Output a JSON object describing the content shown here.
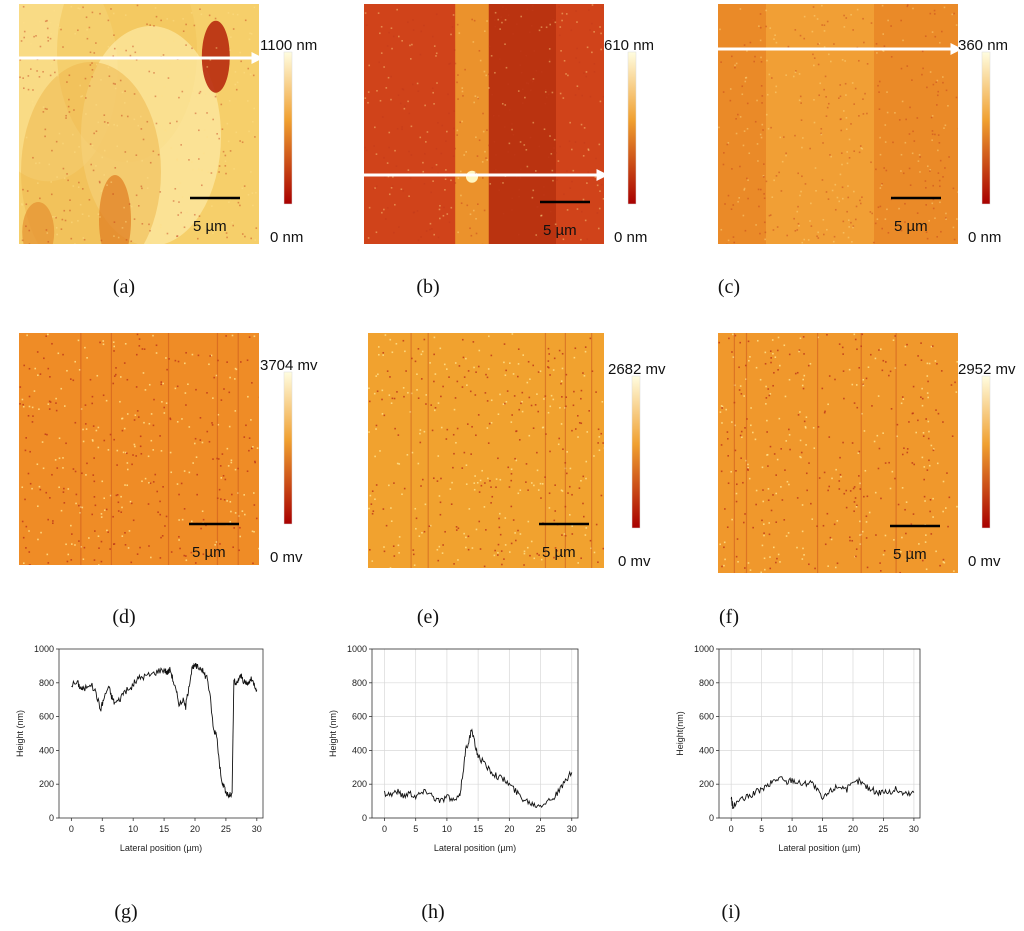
{
  "maps": [
    {
      "id": "a",
      "caption": "(a)",
      "max_label": "1100 nm",
      "min_label": "0 nm",
      "scale_label": "5 µm",
      "kind": "height",
      "base": "#f6cf6a",
      "variant": 0
    },
    {
      "id": "b",
      "caption": "(b)",
      "max_label": "610 nm",
      "min_label": "0 nm",
      "scale_label": "5 µm",
      "kind": "height",
      "base": "#d0431a",
      "variant": 1
    },
    {
      "id": "c",
      "caption": "(c)",
      "max_label": "360 nm",
      "min_label": "0 nm",
      "scale_label": "5 µm",
      "kind": "height",
      "base": "#ea8a28",
      "variant": 2
    },
    {
      "id": "d",
      "caption": "(d)",
      "max_label": "3704 mv",
      "min_label": "0 mv",
      "scale_label": "5 µm",
      "kind": "potential",
      "base": "#ef8c26",
      "variant": 3
    },
    {
      "id": "e",
      "caption": "(e)",
      "max_label": "2682 mv",
      "min_label": "0 mv",
      "scale_label": "5 µm",
      "kind": "potential",
      "base": "#f1a22f",
      "variant": 4
    },
    {
      "id": "f",
      "caption": "(f)",
      "max_label": "2952 mv",
      "min_label": "0 mv",
      "scale_label": "5 µm",
      "kind": "potential",
      "base": "#f0982c",
      "variant": 5
    }
  ],
  "colors": {
    "colorbar_top": "#fffde0",
    "colorbar_mid": "#f0a030",
    "colorbar_bottom": "#a80000",
    "arrow": "#ffffff",
    "line": "#111111"
  },
  "chart_data": [
    {
      "type": "line",
      "caption": "(g)",
      "title": "",
      "xlabel": "Lateral position (µm)",
      "ylabel": "Height (nm)",
      "xlim": [
        -2,
        31
      ],
      "ylim": [
        0,
        1000
      ],
      "xticks": [
        0,
        5,
        10,
        15,
        20,
        25,
        30
      ],
      "yticks": [
        0,
        200,
        400,
        600,
        800,
        1000
      ],
      "grid": false,
      "x": [
        0,
        1,
        1.5,
        2,
        3,
        4,
        4.7,
        5.2,
        6,
        6.5,
        7,
        7.8,
        8.5,
        9.5,
        10.2,
        11,
        12,
        13,
        14,
        15,
        15.5,
        16,
        16.5,
        17,
        17.5,
        18,
        18.5,
        19,
        19.5,
        20,
        20.5,
        21,
        21.5,
        22,
        22.5,
        23,
        23.5,
        24,
        24.5,
        25,
        25.5,
        26,
        26.3,
        26.6,
        27,
        27.5,
        28,
        28.5,
        29,
        29.5,
        30
      ],
      "y": [
        790,
        800,
        770,
        760,
        800,
        740,
        640,
        700,
        780,
        720,
        680,
        700,
        750,
        760,
        800,
        830,
        840,
        850,
        870,
        880,
        860,
        880,
        810,
        740,
        670,
        700,
        660,
        780,
        880,
        900,
        890,
        890,
        850,
        830,
        700,
        520,
        500,
        300,
        200,
        150,
        130,
        140,
        820,
        780,
        820,
        840,
        800,
        790,
        820,
        800,
        760
      ]
    },
    {
      "type": "line",
      "caption": "(h)",
      "title": "",
      "xlabel": "Lateral position (µm)",
      "ylabel": "Height (nm)",
      "xlim": [
        -2,
        31
      ],
      "ylim": [
        0,
        1000
      ],
      "xticks": [
        0,
        5,
        10,
        15,
        20,
        25,
        30
      ],
      "yticks": [
        0,
        200,
        400,
        600,
        800,
        1000
      ],
      "grid": true,
      "x": [
        0,
        1,
        2,
        3,
        4,
        5,
        6,
        7,
        8,
        9,
        10,
        11,
        12,
        12.5,
        13,
        13.5,
        14,
        14.5,
        15,
        16,
        17,
        18,
        19,
        20,
        21,
        22,
        23,
        24,
        25,
        26,
        27,
        28,
        29,
        30
      ],
      "y": [
        150,
        140,
        160,
        130,
        150,
        130,
        150,
        160,
        120,
        100,
        130,
        100,
        120,
        250,
        400,
        460,
        520,
        430,
        370,
        320,
        280,
        250,
        230,
        200,
        160,
        120,
        100,
        80,
        80,
        100,
        120,
        160,
        220,
        270
      ]
    },
    {
      "type": "line",
      "caption": "(i)",
      "title": "",
      "xlabel": "Lateral position (µm)",
      "ylabel": "Height(nm)",
      "xlim": [
        -2,
        31
      ],
      "ylim": [
        0,
        1000
      ],
      "xticks": [
        0,
        5,
        10,
        15,
        20,
        25,
        30
      ],
      "yticks": [
        0,
        200,
        400,
        600,
        800,
        1000
      ],
      "grid": true,
      "x": [
        0,
        0.3,
        1,
        2,
        3,
        4,
        5,
        6,
        7,
        8,
        9,
        10,
        11,
        12,
        13,
        14,
        15,
        16,
        17,
        18,
        19,
        20,
        21,
        22,
        23,
        24,
        25,
        26,
        27,
        28,
        29,
        30
      ],
      "y": [
        120,
        60,
        100,
        110,
        130,
        150,
        170,
        190,
        220,
        240,
        210,
        230,
        210,
        200,
        220,
        170,
        110,
        150,
        180,
        190,
        170,
        200,
        220,
        190,
        170,
        150,
        160,
        150,
        170,
        150,
        140,
        150
      ]
    }
  ]
}
